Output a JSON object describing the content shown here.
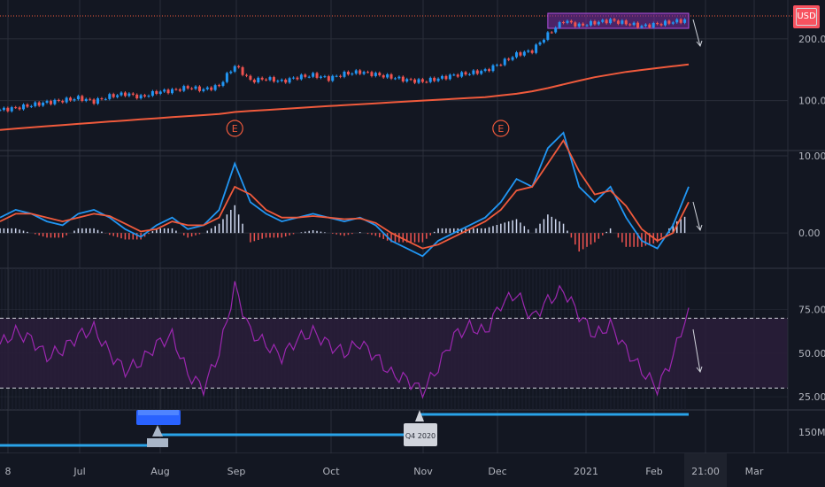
{
  "currency_label": "USD",
  "colors": {
    "background": "#131722",
    "grid": "#2a2e39",
    "up": "#26a69a",
    "down": "#ef5350",
    "candle_blue": "#2196f3",
    "ma_line": "#f05a3c",
    "rsi": "#9c27b0",
    "rsi_band": "#2a1d3a",
    "level_line": "#29a3e8",
    "axis_text": "#b2b5be"
  },
  "x_axis": {
    "tick_labels": [
      "8",
      "Jul",
      "Aug",
      "Sep",
      "Oct",
      "Nov",
      "Dec",
      "2021",
      "Feb",
      "21:00",
      "Mar"
    ]
  },
  "chart_data": [
    {
      "type": "line",
      "name": "price",
      "y_tick_labels": [
        "200.00",
        "100.00"
      ],
      "y_scale": "log",
      "close": [
        90,
        92,
        95,
        98,
        100,
        103,
        99,
        105,
        108,
        104,
        110,
        112,
        116,
        113,
        118,
        148,
        125,
        128,
        124,
        130,
        133,
        128,
        135,
        138,
        134,
        130,
        126,
        124,
        128,
        133,
        136,
        140,
        152,
        168,
        175,
        210,
        245,
        232,
        240,
        246,
        238,
        230,
        236,
        242,
        248
      ],
      "moving_average": [
        72,
        73,
        74,
        75,
        76,
        77,
        78,
        79,
        80,
        81,
        82,
        83,
        84,
        85,
        86,
        88,
        89,
        90,
        91,
        92,
        93,
        94,
        95,
        96,
        97,
        98,
        99,
        100,
        101,
        102,
        103,
        104,
        106,
        108,
        111,
        115,
        120,
        125,
        130,
        134,
        138,
        141,
        144,
        147,
        150
      ],
      "earnings_markers": [
        {
          "index": 15,
          "label": "E"
        },
        {
          "index": 32,
          "label": "E"
        }
      ]
    },
    {
      "type": "line",
      "name": "macd",
      "y_tick_labels": [
        "10.00",
        "0.00"
      ],
      "ylim": [
        -4,
        10
      ],
      "macd": [
        2,
        3,
        2.5,
        1.5,
        1,
        2.5,
        3,
        2,
        0.5,
        -0.5,
        1,
        2,
        0.5,
        1,
        3,
        9,
        4,
        2.5,
        1.5,
        2,
        2.5,
        2,
        1.5,
        2,
        1,
        -1,
        -2,
        -3,
        -1,
        0,
        1,
        2,
        4,
        7,
        6,
        11,
        13,
        6,
        4,
        6,
        2,
        -1,
        -2,
        1,
        6
      ],
      "signal": [
        1.5,
        2.5,
        2.5,
        2,
        1.5,
        2,
        2.5,
        2.2,
        1.2,
        0.2,
        0.5,
        1.5,
        1,
        1,
        2,
        6,
        5,
        3,
        2,
        2,
        2.2,
        2,
        1.8,
        1.9,
        1.3,
        0,
        -1,
        -2,
        -1.5,
        -0.5,
        0.5,
        1.5,
        3,
        5.5,
        6,
        9,
        12,
        8,
        5,
        5.5,
        3.5,
        0.5,
        -1,
        0,
        4
      ]
    },
    {
      "type": "line",
      "name": "rsi",
      "y_tick_labels": [
        "75.00",
        "50.00",
        "25.00"
      ],
      "ylim": [
        20,
        95
      ],
      "band": [
        30,
        70
      ],
      "values": [
        55,
        62,
        58,
        48,
        52,
        60,
        64,
        50,
        40,
        45,
        55,
        60,
        38,
        30,
        50,
        88,
        62,
        55,
        48,
        58,
        62,
        55,
        50,
        56,
        48,
        38,
        35,
        28,
        42,
        60,
        65,
        62,
        78,
        84,
        70,
        80,
        86,
        72,
        60,
        66,
        52,
        40,
        30,
        48,
        76
      ]
    },
    {
      "type": "line",
      "name": "volume-levels",
      "y_tick_labels": [
        "150M"
      ],
      "quarter_labels": [
        {
          "label": "Q4 2020",
          "index": 29
        }
      ]
    }
  ]
}
